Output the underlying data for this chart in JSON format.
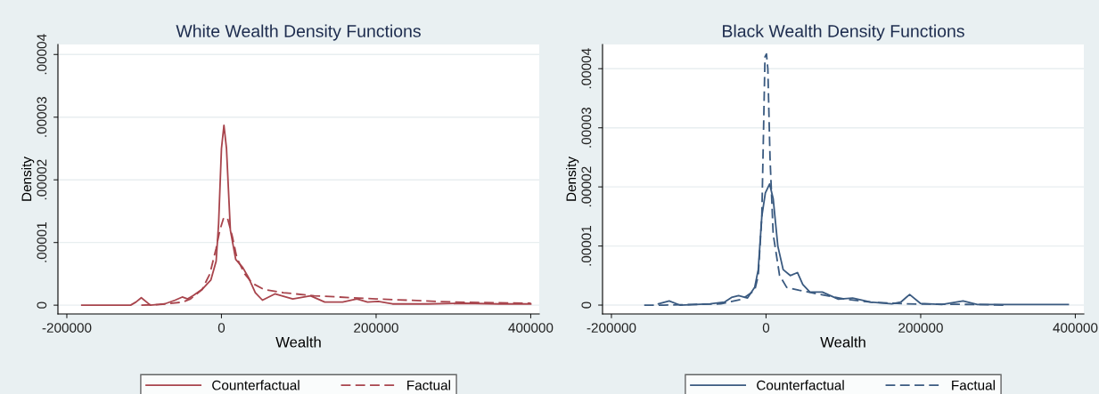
{
  "chart_data": [
    {
      "type": "line",
      "title": "White Wealth Density Functions",
      "xlabel": "Wealth",
      "ylabel": "Density",
      "xlim": [
        -211500,
        411000
      ],
      "ylim": [
        -1.4e-06,
        4.16e-05
      ],
      "xticks": [
        -200000,
        0,
        200000,
        400000
      ],
      "yticks": [
        0,
        {
          "value": 1e-05,
          "label": ".00001"
        },
        {
          "value": 2e-05,
          "label": ".00002"
        },
        {
          "value": 3e-05,
          "label": ".00003"
        },
        {
          "value": 4e-05,
          "label": ".00004"
        }
      ],
      "grid": "y",
      "legend": "bottom",
      "series": [
        {
          "name": "Counterfactual",
          "color": "#a8444c",
          "line_style": "solid",
          "x": [
            -180600,
            -117500,
            -110600,
            -103700,
            -96800,
            -92000,
            -73700,
            -60000,
            -50700,
            -43800,
            -36900,
            -25300,
            -13800,
            -6900,
            -3700,
            0,
            3200,
            6500,
            11500,
            18400,
            27600,
            34600,
            43800,
            53000,
            69100,
            92200,
            115200,
            133600,
            156700,
            175100,
            188900,
            202700,
            221200,
            267300,
            313400,
            359400,
            400000
          ],
          "values": [
            0,
            0,
            5e-07,
            1.2e-06,
            5e-07,
            0,
            2e-07,
            8e-07,
            1.3e-06,
            1e-06,
            1.5e-06,
            2.5e-06,
            4e-06,
            7e-06,
            1.3e-05,
            2.5e-05,
            2.87e-05,
            2.5e-05,
            1.2e-05,
            7.3e-06,
            6e-06,
            4.5e-06,
            2e-06,
            8e-07,
            1.8e-06,
            1e-06,
            1.5e-06,
            5e-07,
            5e-07,
            1e-06,
            5e-07,
            6e-07,
            2e-07,
            2e-07,
            3e-07,
            2e-07,
            2e-07
          ]
        },
        {
          "name": "Factual",
          "color": "#a8444c",
          "line_style": "dashed",
          "x": [
            -103700,
            -80000,
            -50000,
            -40000,
            -25000,
            -15000,
            -7000,
            -2000,
            3000,
            8000,
            14000,
            20000,
            30000,
            40000,
            55000,
            80000,
            120000,
            200000,
            300000,
            400000
          ],
          "values": [
            0,
            1e-07,
            5e-07,
            1e-06,
            2.5e-06,
            5e-06,
            9e-06,
            1.2e-05,
            1.4e-05,
            1.38e-05,
            1.1e-05,
            7.5e-06,
            5e-06,
            3.5e-06,
            2.5e-06,
            2e-06,
            1.5e-06,
            1e-06,
            5e-07,
            3e-07
          ]
        }
      ]
    },
    {
      "type": "line",
      "title": "Black Wealth Density Functions",
      "xlabel": "Wealth",
      "ylabel": "Density",
      "xlim": [
        -211500,
        411000
      ],
      "ylim": [
        -1.5e-06,
        4.41e-05
      ],
      "xticks": [
        -200000,
        0,
        200000,
        400000
      ],
      "yticks": [
        0,
        {
          "value": 1e-05,
          "label": ".00001"
        },
        {
          "value": 2e-05,
          "label": ".00002"
        },
        {
          "value": 3e-05,
          "label": ".00003"
        },
        {
          "value": 4e-05,
          "label": ".00004"
        }
      ],
      "grid": "y",
      "legend": "bottom",
      "series": [
        {
          "name": "Counterfactual",
          "color": "#3a5a80",
          "line_style": "solid",
          "x": [
            -139200,
            -125300,
            -111500,
            -72400,
            -53900,
            -44700,
            -35500,
            -24000,
            -14700,
            -10100,
            -5500,
            -900,
            4600,
            9200,
            15200,
            22100,
            31300,
            40600,
            47500,
            56700,
            72800,
            93500,
            112000,
            135000,
            162700,
            174200,
            185700,
            199500,
            227200,
            254800,
            273300,
            319400,
            390800
          ],
          "values": [
            2e-07,
            7e-07,
            0,
            2e-07,
            5e-07,
            1.3e-06,
            1.6e-06,
            1.2e-06,
            3e-06,
            6e-06,
            1.5e-05,
            1.9e-05,
            2.05e-05,
            1.8e-05,
            1e-05,
            6e-06,
            5e-06,
            5.5e-06,
            3.5e-06,
            2.2e-06,
            2.2e-06,
            1e-06,
            1.2e-06,
            5e-07,
            2e-07,
            5e-07,
            1.8e-06,
            3e-07,
            1e-07,
            7e-07,
            1e-07,
            1e-07,
            1e-07
          ]
        },
        {
          "name": "Factual",
          "color": "#3a5a80",
          "line_style": "dashed",
          "x": [
            -157600,
            -132300,
            -95400,
            -58500,
            -30900,
            -14700,
            -10100,
            -5500,
            -3200,
            -1400,
            500,
            2300,
            5100,
            9200,
            17500,
            26700,
            42900,
            70500,
            102800,
            135000,
            181100,
            273300,
            310000
          ],
          "values": [
            0,
            0,
            1e-07,
            2e-07,
            1e-06,
            2.5e-06,
            5e-06,
            1.5e-05,
            3e-05,
            4.2e-05,
            4.25e-05,
            4e-05,
            2.5e-05,
            1.2e-05,
            5e-06,
            3e-06,
            2.5e-06,
            1.8e-06,
            1e-06,
            5e-07,
            2e-07,
            1e-07,
            0
          ]
        }
      ]
    }
  ]
}
